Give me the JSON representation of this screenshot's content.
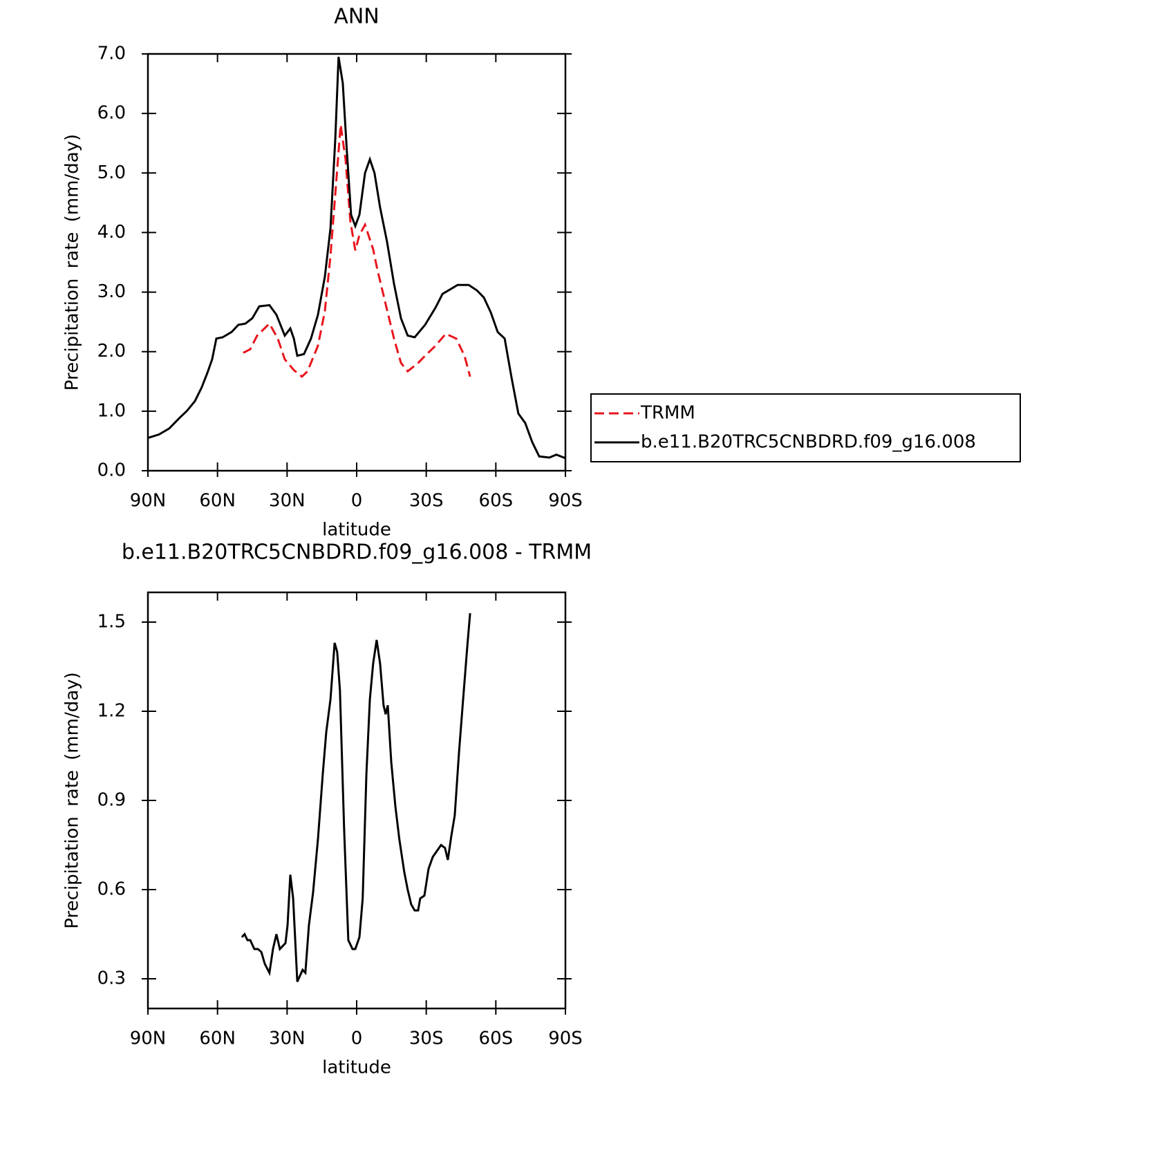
{
  "chart_data": [
    {
      "type": "line",
      "title": "ANN",
      "xlabel": "latitude",
      "ylabel": "Precipitation rate (mm/day)",
      "xlim": [
        90,
        -90
      ],
      "xticks": [
        {
          "value": 90,
          "label": "90N"
        },
        {
          "value": 60,
          "label": "60N"
        },
        {
          "value": 30,
          "label": "30N"
        },
        0,
        {
          "value": -30,
          "label": "30S"
        },
        {
          "value": -60,
          "label": "60S"
        },
        {
          "value": -90,
          "label": "90S"
        }
      ],
      "ylim": [
        0,
        7
      ],
      "yticks": [
        {
          "value": 0,
          "label": "0.0"
        },
        {
          "value": 1,
          "label": "1.0"
        },
        {
          "value": 2,
          "label": "2.0"
        },
        {
          "value": 3,
          "label": "3.0"
        },
        {
          "value": 4,
          "label": "4.0"
        },
        {
          "value": 5,
          "label": "5.0"
        },
        {
          "value": 6,
          "label": "6.0"
        },
        {
          "value": 7,
          "label": "7.0"
        }
      ],
      "legend": "outside-right",
      "series": [
        {
          "name": "TRMM",
          "color": "#e8141c",
          "line_style": "dashed",
          "x": [
            48.9,
            45.9,
            42.9,
            37.6,
            34.0,
            31.0,
            27.1,
            23.6,
            21.2,
            16.7,
            13.7,
            11.3,
            9.2,
            6.9,
            4.8,
            2.7,
            0.6,
            -1.2,
            -3.6,
            -7.1,
            -8.9,
            -12.5,
            -16.1,
            -19.1,
            -22.0,
            -26.5,
            -29.5,
            -34.0,
            -38.4,
            -42.9,
            -46.5,
            -48.9
          ],
          "values": [
            1.98,
            2.04,
            2.27,
            2.47,
            2.22,
            1.87,
            1.69,
            1.58,
            1.67,
            2.1,
            2.68,
            3.61,
            4.65,
            5.81,
            5.23,
            4.19,
            3.7,
            3.96,
            4.13,
            3.72,
            3.38,
            2.8,
            2.22,
            1.81,
            1.67,
            1.81,
            1.93,
            2.1,
            2.3,
            2.22,
            1.93,
            1.58
          ]
        },
        {
          "name": "b.e11.B20TRC5CNBDRD.f09_g16.008",
          "color": "#000000",
          "line_style": "solid",
          "x": [
            90,
            85.2,
            80.8,
            76.3,
            73.3,
            69.7,
            66.8,
            64.4,
            62.3,
            60.5,
            57.8,
            53.9,
            51.0,
            48.0,
            45.0,
            42.0,
            37.6,
            34.6,
            31.0,
            28.6,
            27.1,
            25.6,
            22.7,
            19.7,
            16.7,
            13.7,
            11.3,
            9.2,
            7.8,
            6.0,
            4.2,
            2.4,
            0.6,
            -1.2,
            -3.6,
            -5.7,
            -7.7,
            -10.1,
            -13.1,
            -16.1,
            -19.1,
            -22.0,
            -25.0,
            -29.5,
            -34.0,
            -37.0,
            -40.5,
            -43.5,
            -48.3,
            -51.8,
            -54.8,
            -57.8,
            -60.8,
            -63.8,
            -66.7,
            -69.7,
            -72.7,
            -75.7,
            -78.7,
            -83.1,
            -86.1,
            -90
          ],
          "values": [
            0.55,
            0.61,
            0.71,
            0.89,
            1.0,
            1.17,
            1.4,
            1.64,
            1.87,
            2.22,
            2.24,
            2.33,
            2.45,
            2.47,
            2.56,
            2.76,
            2.78,
            2.62,
            2.27,
            2.39,
            2.22,
            1.93,
            1.96,
            2.22,
            2.62,
            3.26,
            4.07,
            5.58,
            6.95,
            6.51,
            5.35,
            4.3,
            4.11,
            4.3,
            5.0,
            5.23,
            5.0,
            4.42,
            3.84,
            3.14,
            2.56,
            2.27,
            2.24,
            2.45,
            2.74,
            2.97,
            3.05,
            3.12,
            3.12,
            3.03,
            2.91,
            2.66,
            2.33,
            2.22,
            1.58,
            0.96,
            0.8,
            0.48,
            0.24,
            0.22,
            0.27,
            0.21
          ]
        }
      ]
    },
    {
      "type": "line",
      "title": "b.e11.B20TRC5CNBDRD.f09_g16.008 - TRMM",
      "xlabel": "latitude",
      "ylabel": "Precipitation rate (mm/day)",
      "xlim": [
        90,
        -90
      ],
      "xticks": [
        {
          "value": 90,
          "label": "90N"
        },
        {
          "value": 60,
          "label": "60N"
        },
        {
          "value": 30,
          "label": "30N"
        },
        0,
        {
          "value": -30,
          "label": "30S"
        },
        {
          "value": -60,
          "label": "60S"
        },
        {
          "value": -90,
          "label": "90S"
        }
      ],
      "ylim": [
        0.2,
        1.6
      ],
      "yticks": [
        0.3,
        0.6,
        0.9,
        1.2,
        1.5
      ],
      "series": [
        {
          "color": "#000000",
          "line_style": "solid",
          "x": [
            49.5,
            48.3,
            47.1,
            45.9,
            44.1,
            42.6,
            41.1,
            39.6,
            37.6,
            36.1,
            34.6,
            33.1,
            30.7,
            29.8,
            28.6,
            27.4,
            25.6,
            23.3,
            22.1,
            20.6,
            18.8,
            16.7,
            14.6,
            13.1,
            11.3,
            9.5,
            8.4,
            7.2,
            5.4,
            3.6,
            1.8,
            0.6,
            -1.2,
            -2.6,
            -4.2,
            -5.7,
            -7.1,
            -8.6,
            -10.1,
            -11.6,
            -12.5,
            -13.4,
            -14.9,
            -16.7,
            -18.4,
            -20.5,
            -22.0,
            -23.5,
            -25.0,
            -26.5,
            -27.4,
            -29.2,
            -31.0,
            -32.8,
            -34.6,
            -36.4,
            -38.1,
            -39.3,
            -40.8,
            -42.3,
            -44.1,
            -45.9,
            -47.7,
            -48.9
          ],
          "values": [
            0.44,
            0.45,
            0.43,
            0.43,
            0.4,
            0.4,
            0.39,
            0.35,
            0.32,
            0.4,
            0.45,
            0.4,
            0.42,
            0.48,
            0.65,
            0.57,
            0.29,
            0.33,
            0.32,
            0.48,
            0.59,
            0.77,
            0.99,
            1.13,
            1.24,
            1.43,
            1.4,
            1.27,
            0.8,
            0.43,
            0.4,
            0.4,
            0.44,
            0.57,
            0.99,
            1.24,
            1.36,
            1.44,
            1.36,
            1.22,
            1.19,
            1.22,
            1.03,
            0.88,
            0.77,
            0.66,
            0.6,
            0.55,
            0.53,
            0.53,
            0.57,
            0.58,
            0.67,
            0.71,
            0.73,
            0.75,
            0.74,
            0.7,
            0.78,
            0.85,
            1.06,
            1.24,
            1.42,
            1.53
          ]
        }
      ]
    }
  ]
}
